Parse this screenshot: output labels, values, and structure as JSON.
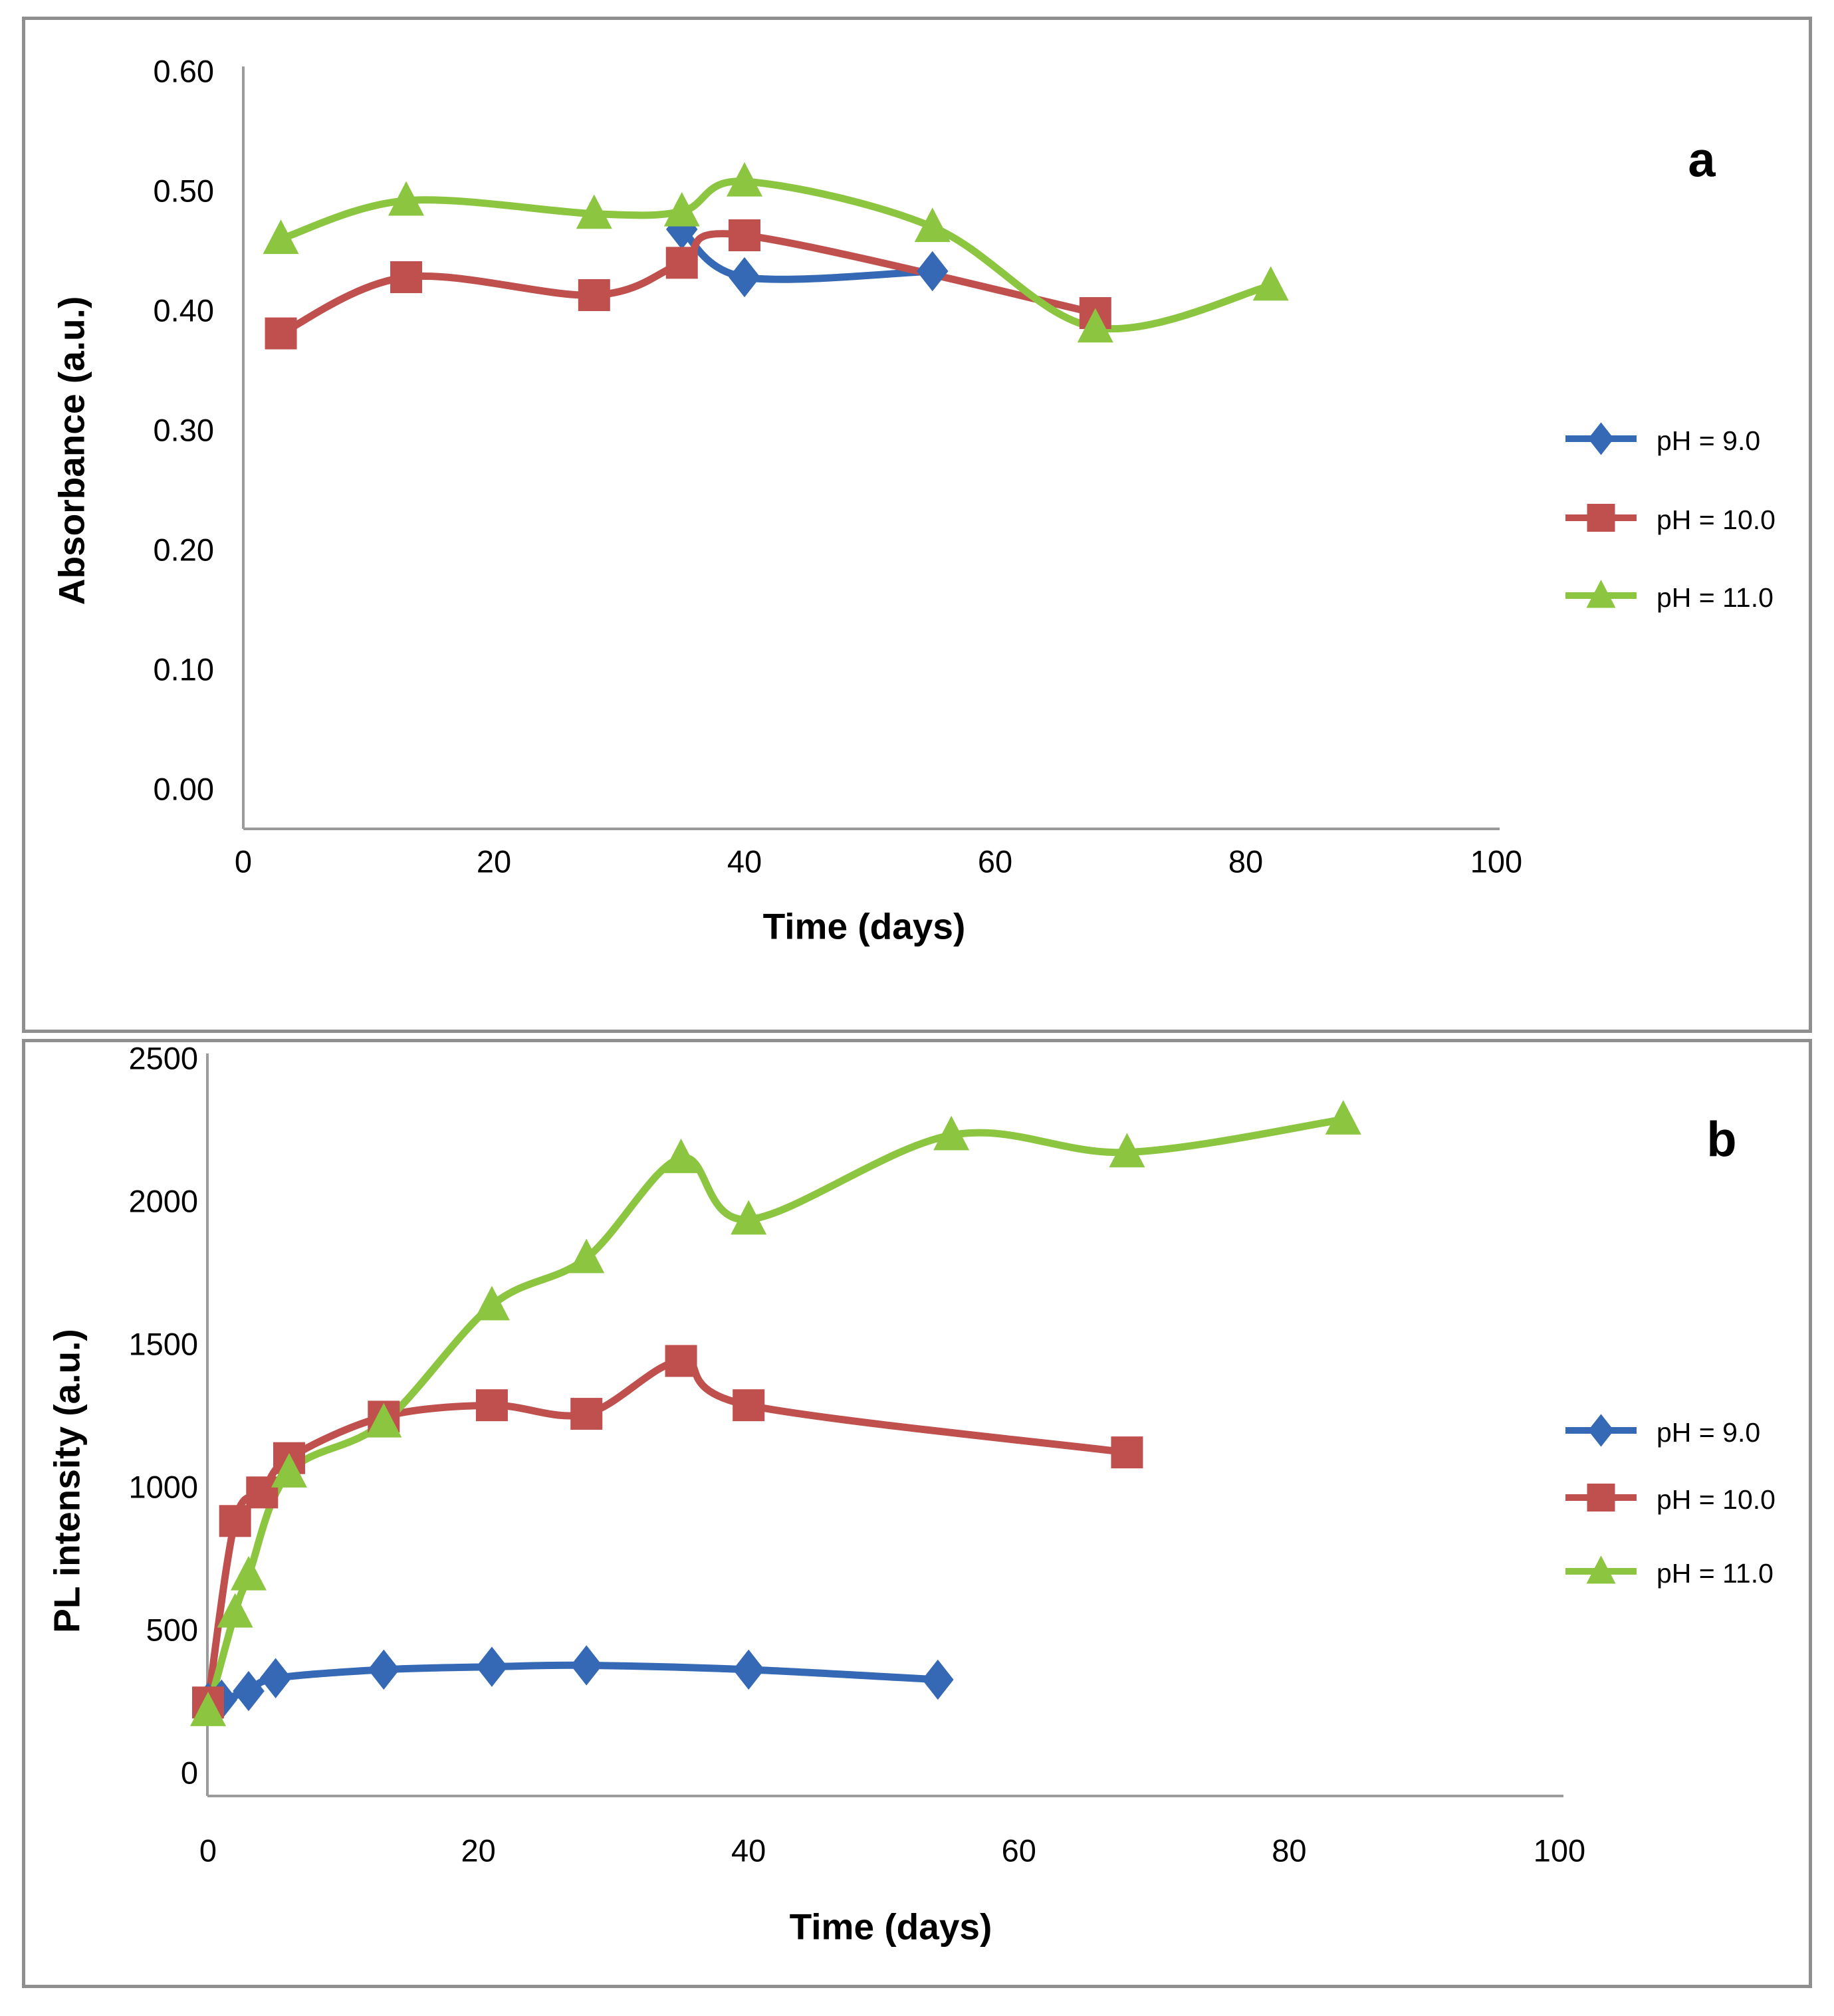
{
  "figure": {
    "background": "#ffffff",
    "panel_border_color": "#8f8f8f",
    "axis_line_color": "#9b9b9b",
    "panels": [
      {
        "label": "a"
      },
      {
        "label": "b"
      }
    ]
  },
  "chart_data": [
    {
      "type": "line",
      "panel_label": "a",
      "title": "",
      "xlabel": "Time (days)",
      "ylabel": "Absorbance (a.u.)",
      "xlim": [
        0,
        100
      ],
      "ylim": [
        0.0,
        0.6
      ],
      "x_ticks": [
        "0",
        "20",
        "40",
        "60",
        "80",
        "100"
      ],
      "x_tick_values": [
        0,
        20,
        40,
        60,
        80,
        100
      ],
      "y_ticks": [
        "0.00",
        "0.10",
        "0.20",
        "0.30",
        "0.40",
        "0.50",
        "0.60"
      ],
      "y_tick_values": [
        0.0,
        0.1,
        0.2,
        0.3,
        0.4,
        0.5,
        0.6
      ],
      "grid": false,
      "legend_position": "right",
      "series": [
        {
          "name": "pH = 9.0",
          "color": "#3569B5",
          "marker": "diamond",
          "x": [
            35,
            40,
            55
          ],
          "y": [
            0.47,
            0.43,
            0.435
          ]
        },
        {
          "name": "pH = 10.0",
          "color": "#C0504D",
          "marker": "square",
          "x": [
            3,
            13,
            28,
            35,
            40,
            68
          ],
          "y": [
            0.383,
            0.43,
            0.415,
            0.442,
            0.465,
            0.4
          ]
        },
        {
          "name": "pH = 11.0",
          "color": "#8CC540",
          "marker": "triangle",
          "x": [
            3,
            13,
            28,
            35,
            40,
            55,
            68,
            82
          ],
          "y": [
            0.462,
            0.494,
            0.483,
            0.485,
            0.51,
            0.472,
            0.388,
            0.423
          ]
        }
      ]
    },
    {
      "type": "line",
      "panel_label": "b",
      "title": "",
      "xlabel": "Time (days)",
      "ylabel": "PL intensity (a.u.)",
      "xlim": [
        0,
        100
      ],
      "ylim": [
        0,
        2500
      ],
      "x_ticks": [
        "0",
        "20",
        "40",
        "60",
        "80",
        "100"
      ],
      "x_tick_values": [
        0,
        20,
        40,
        60,
        80,
        100
      ],
      "y_ticks": [
        "0",
        "500",
        "1000",
        "1500",
        "2000",
        "2500"
      ],
      "y_tick_values": [
        0,
        500,
        1000,
        1500,
        2000,
        2500
      ],
      "grid": false,
      "legend_position": "right",
      "series": [
        {
          "name": "pH = 9.0",
          "color": "#3569B5",
          "marker": "diamond",
          "x": [
            0,
            1,
            3,
            5,
            13,
            21,
            28,
            40,
            54
          ],
          "y": [
            255,
            265,
            295,
            340,
            370,
            380,
            385,
            370,
            335
          ]
        },
        {
          "name": "pH = 10.0",
          "color": "#C0504D",
          "marker": "square",
          "x": [
            0,
            2,
            4,
            6,
            13,
            21,
            28,
            35,
            40,
            68
          ],
          "y": [
            255,
            890,
            990,
            1110,
            1255,
            1295,
            1265,
            1450,
            1295,
            1130
          ]
        },
        {
          "name": "pH = 11.0",
          "color": "#8CC540",
          "marker": "triangle",
          "x": [
            0,
            2,
            3,
            6,
            13,
            21,
            28,
            35,
            40,
            55,
            68,
            84
          ],
          "y": [
            225,
            570,
            700,
            1060,
            1235,
            1645,
            1810,
            2160,
            1945,
            2240,
            2180,
            2295
          ]
        }
      ]
    }
  ]
}
